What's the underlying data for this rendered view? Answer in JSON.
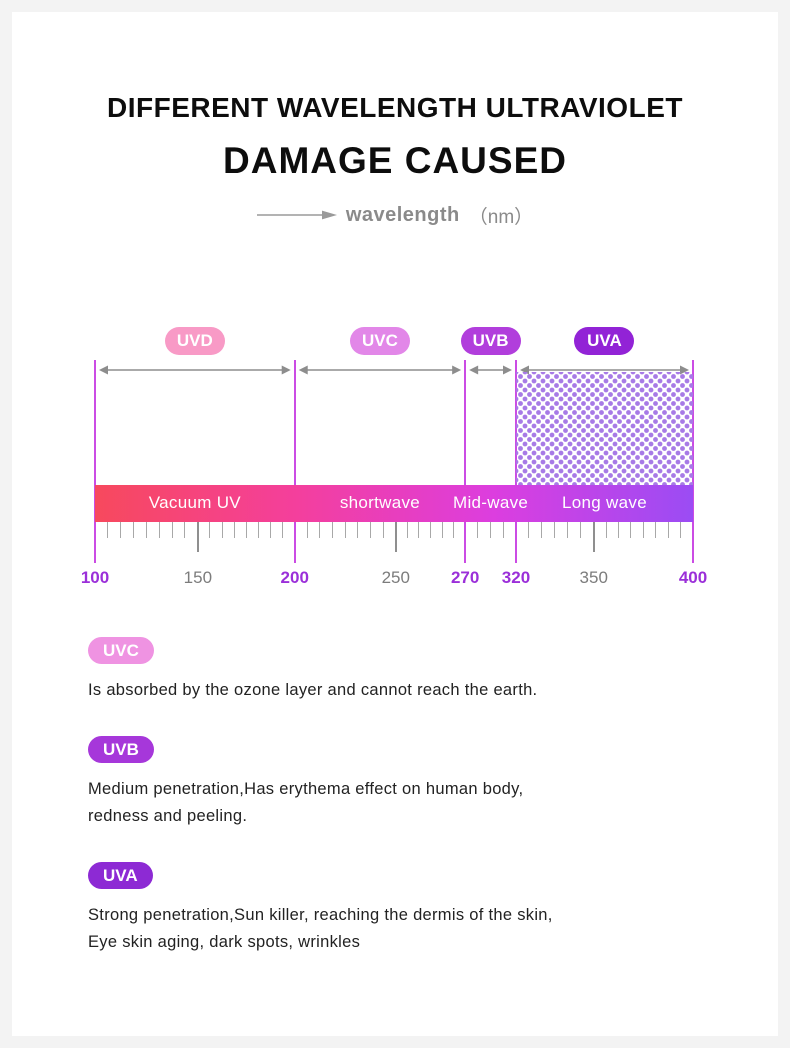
{
  "header": {
    "title_line1": "DIFFERENT WAVELENGTH ULTRAVIOLET",
    "title_line2": "DAMAGE CAUSED",
    "axis_caption": "wavelength",
    "axis_caption_unit": "（nm）"
  },
  "chart_data": {
    "type": "wavelength-band-scale",
    "axis_label": "wavelength (nm)",
    "axis_range": [
      100,
      400
    ],
    "boundaries_nm": [
      100,
      200,
      270,
      320,
      400
    ],
    "boundaries": [
      0,
      0.334,
      0.619,
      0.704,
      1
    ],
    "bands": [
      {
        "label": "UVD",
        "range_nm": [
          100,
          200
        ],
        "bar_label": "Vacuum UV",
        "badge_color": "#f89ac6",
        "dotted": false
      },
      {
        "label": "UVC",
        "range_nm": [
          200,
          270
        ],
        "bar_label": "shortwave",
        "badge_color": "#e287e8",
        "dotted": false
      },
      {
        "label": "UVB",
        "range_nm": [
          270,
          320
        ],
        "bar_label": "Mid-wave",
        "badge_color": "#b13edc",
        "dotted": false
      },
      {
        "label": "UVA",
        "range_nm": [
          320,
          400
        ],
        "bar_label": "Long wave",
        "badge_color": "#9223d6",
        "dotted": true
      }
    ],
    "bar_gradient": [
      "#f7495d",
      "#f43f9c",
      "#dc3edf",
      "#9b4cf4"
    ],
    "ticks": [
      {
        "value": 100,
        "pos": 0,
        "highlight": true
      },
      {
        "value": 150,
        "pos": 0.172,
        "highlight": false
      },
      {
        "value": 200,
        "pos": 0.334,
        "highlight": true
      },
      {
        "value": 250,
        "pos": 0.503,
        "highlight": false
      },
      {
        "value": 270,
        "pos": 0.619,
        "highlight": true
      },
      {
        "value": 320,
        "pos": 0.704,
        "highlight": true
      },
      {
        "value": 350,
        "pos": 0.834,
        "highlight": false
      },
      {
        "value": 400,
        "pos": 1,
        "highlight": true
      }
    ],
    "colors": {
      "boundary_line": "#cb4ce4",
      "arrow": "#8d8d8d",
      "tick_highlight": "#9b2fd9",
      "tick_muted": "#7c7c7c",
      "dots": "#a77ae6"
    }
  },
  "legend": [
    {
      "label": "UVC",
      "badge_color": "#ef93e2",
      "lines": [
        "Is absorbed by the ozone layer and cannot reach the earth."
      ]
    },
    {
      "label": "UVB",
      "badge_color": "#a637da",
      "lines": [
        "Medium penetration,Has erythema effect on human body,",
        "redness and peeling."
      ]
    },
    {
      "label": "UVA",
      "badge_color": "#8d2ad4",
      "lines": [
        "Strong penetration,Sun killer, reaching the dermis of the skin,",
        "Eye skin aging, dark spots, wrinkles"
      ]
    }
  ]
}
